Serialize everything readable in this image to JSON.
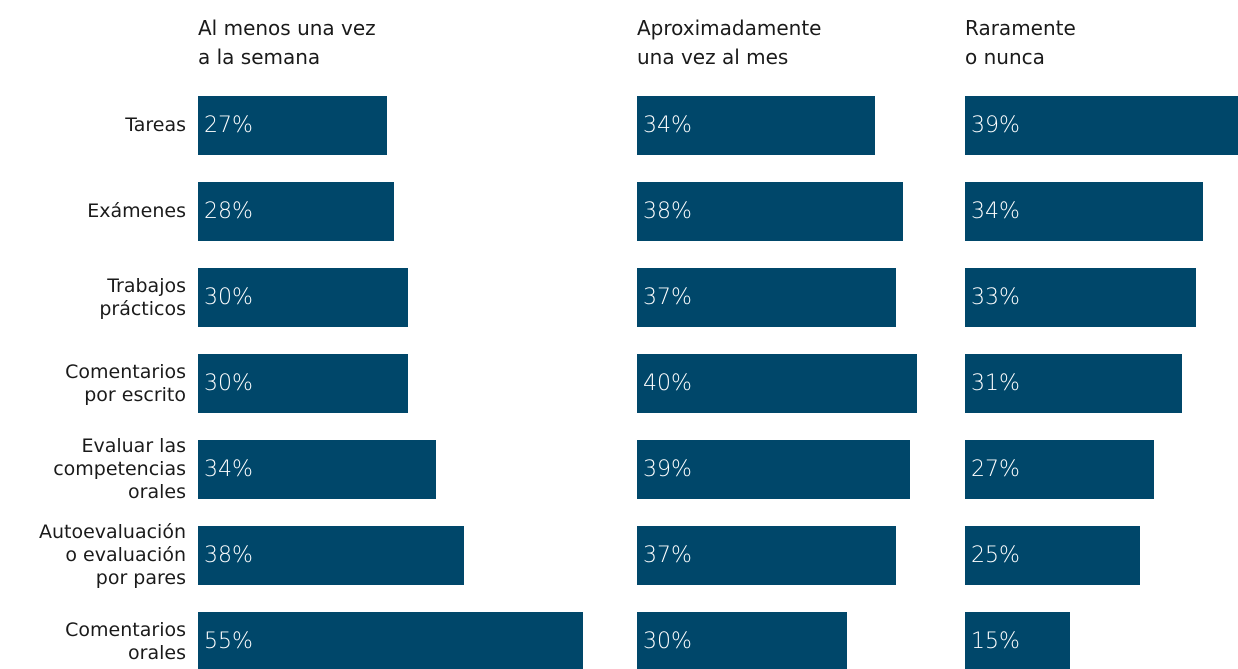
{
  "chart_data": {
    "type": "bar",
    "orientation": "horizontal",
    "categories": [
      "Tareas",
      "Exámenes",
      "Trabajos\nprácticos",
      "Comentarios\npor escrito",
      "Evaluar las\ncompetencias\norales",
      "Autoevaluación\no evaluación\npor pares",
      "Comentarios\norales"
    ],
    "series": [
      {
        "name": "Al menos una vez\na la semana",
        "color": "#00476a",
        "values": [
          27,
          28,
          30,
          30,
          34,
          38,
          55
        ],
        "value_labels": [
          "27%",
          "28%",
          "30%",
          "30%",
          "34%",
          "38%",
          "55%"
        ]
      },
      {
        "name": "Aproximadamente\nuna vez al mes",
        "color": "#00476a",
        "values": [
          34,
          38,
          37,
          40,
          39,
          37,
          30
        ],
        "value_labels": [
          "34%",
          "38%",
          "37%",
          "40%",
          "39%",
          "37%",
          "30%"
        ]
      },
      {
        "name": "Raramente\no nunca",
        "color": "#00476a",
        "values": [
          39,
          34,
          33,
          31,
          27,
          25,
          15
        ],
        "value_labels": [
          "39%",
          "34%",
          "33%",
          "31%",
          "27%",
          "25%",
          "15%"
        ]
      }
    ]
  }
}
